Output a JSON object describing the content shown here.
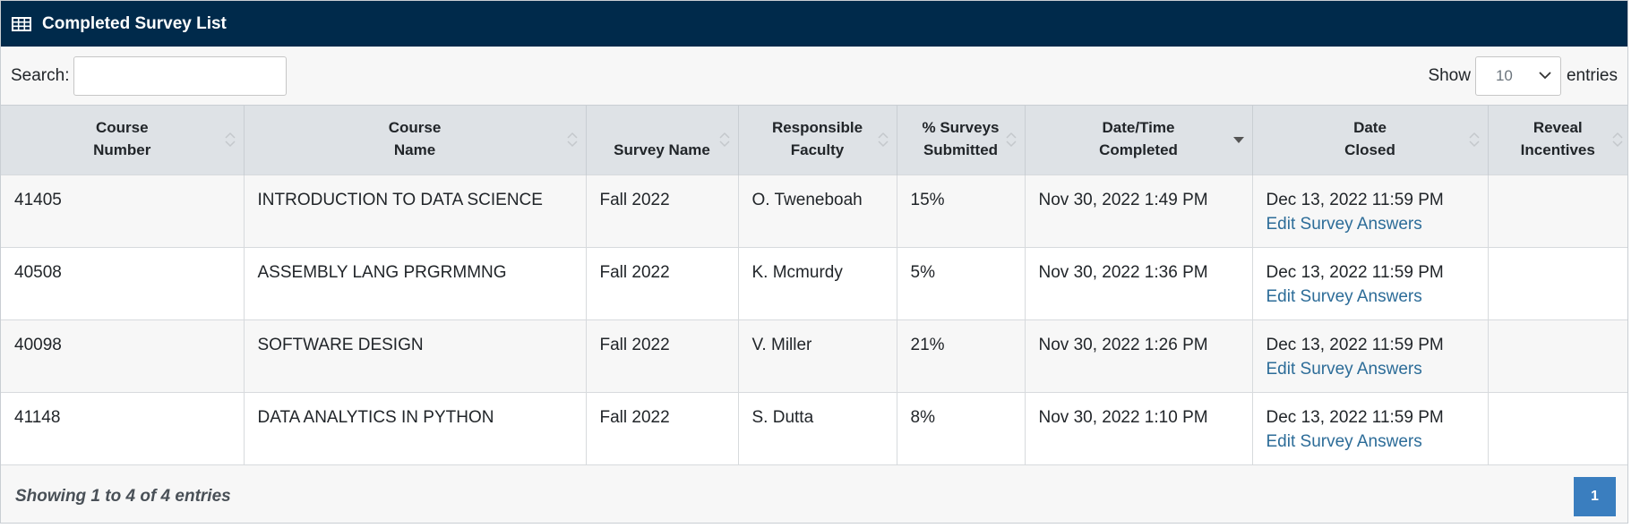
{
  "panel": {
    "title": "Completed Survey List",
    "icon": "table-icon"
  },
  "search": {
    "label": "Search:",
    "value": "",
    "placeholder": ""
  },
  "length": {
    "show_label": "Show",
    "selected": "10",
    "entries_label": "entries"
  },
  "columns": [
    {
      "line1": "Course",
      "line2": "Number"
    },
    {
      "line1": "Course",
      "line2": "Name"
    },
    {
      "line1": "",
      "line2": "Survey Name"
    },
    {
      "line1": "Responsible",
      "line2": "Faculty"
    },
    {
      "line1": "% Surveys",
      "line2": "Submitted"
    },
    {
      "line1": "Date/Time",
      "line2": "Completed"
    },
    {
      "line1": "Date",
      "line2": "Closed"
    },
    {
      "line1": "Reveal",
      "line2": "Incentives"
    }
  ],
  "rows": [
    {
      "course_number": "41405",
      "course_name": "INTRODUCTION TO DATA SCIENCE",
      "survey_name": "Fall 2022",
      "faculty": "O. Tweneboah",
      "percent": "15%",
      "completed": "Nov 30, 2022 1:49 PM",
      "closed": "Dec 13, 2022 11:59 PM",
      "action": "Edit Survey Answers",
      "incentives": ""
    },
    {
      "course_number": "40508",
      "course_name": "ASSEMBLY LANG PRGRMMNG",
      "survey_name": "Fall 2022",
      "faculty": "K. Mcmurdy",
      "percent": "5%",
      "completed": "Nov 30, 2022 1:36 PM",
      "closed": "Dec 13, 2022 11:59 PM",
      "action": "Edit Survey Answers",
      "incentives": ""
    },
    {
      "course_number": "40098",
      "course_name": "SOFTWARE DESIGN",
      "survey_name": "Fall 2022",
      "faculty": "V. Miller",
      "percent": "21%",
      "completed": "Nov 30, 2022 1:26 PM",
      "closed": "Dec 13, 2022 11:59 PM",
      "action": "Edit Survey Answers",
      "incentives": ""
    },
    {
      "course_number": "41148",
      "course_name": "DATA ANALYTICS IN PYTHON",
      "survey_name": "Fall 2022",
      "faculty": "S. Dutta",
      "percent": "8%",
      "completed": "Nov 30, 2022 1:10 PM",
      "closed": "Dec 13, 2022 11:59 PM",
      "action": "Edit Survey Answers",
      "incentives": ""
    }
  ],
  "footer": {
    "info": "Showing 1 to 4 of 4 entries",
    "current_page": "1"
  },
  "colors": {
    "header_bg": "#002a4b",
    "link": "#2c6c98",
    "page_button": "#3a7ebf",
    "thead_bg": "#dee2e6"
  }
}
